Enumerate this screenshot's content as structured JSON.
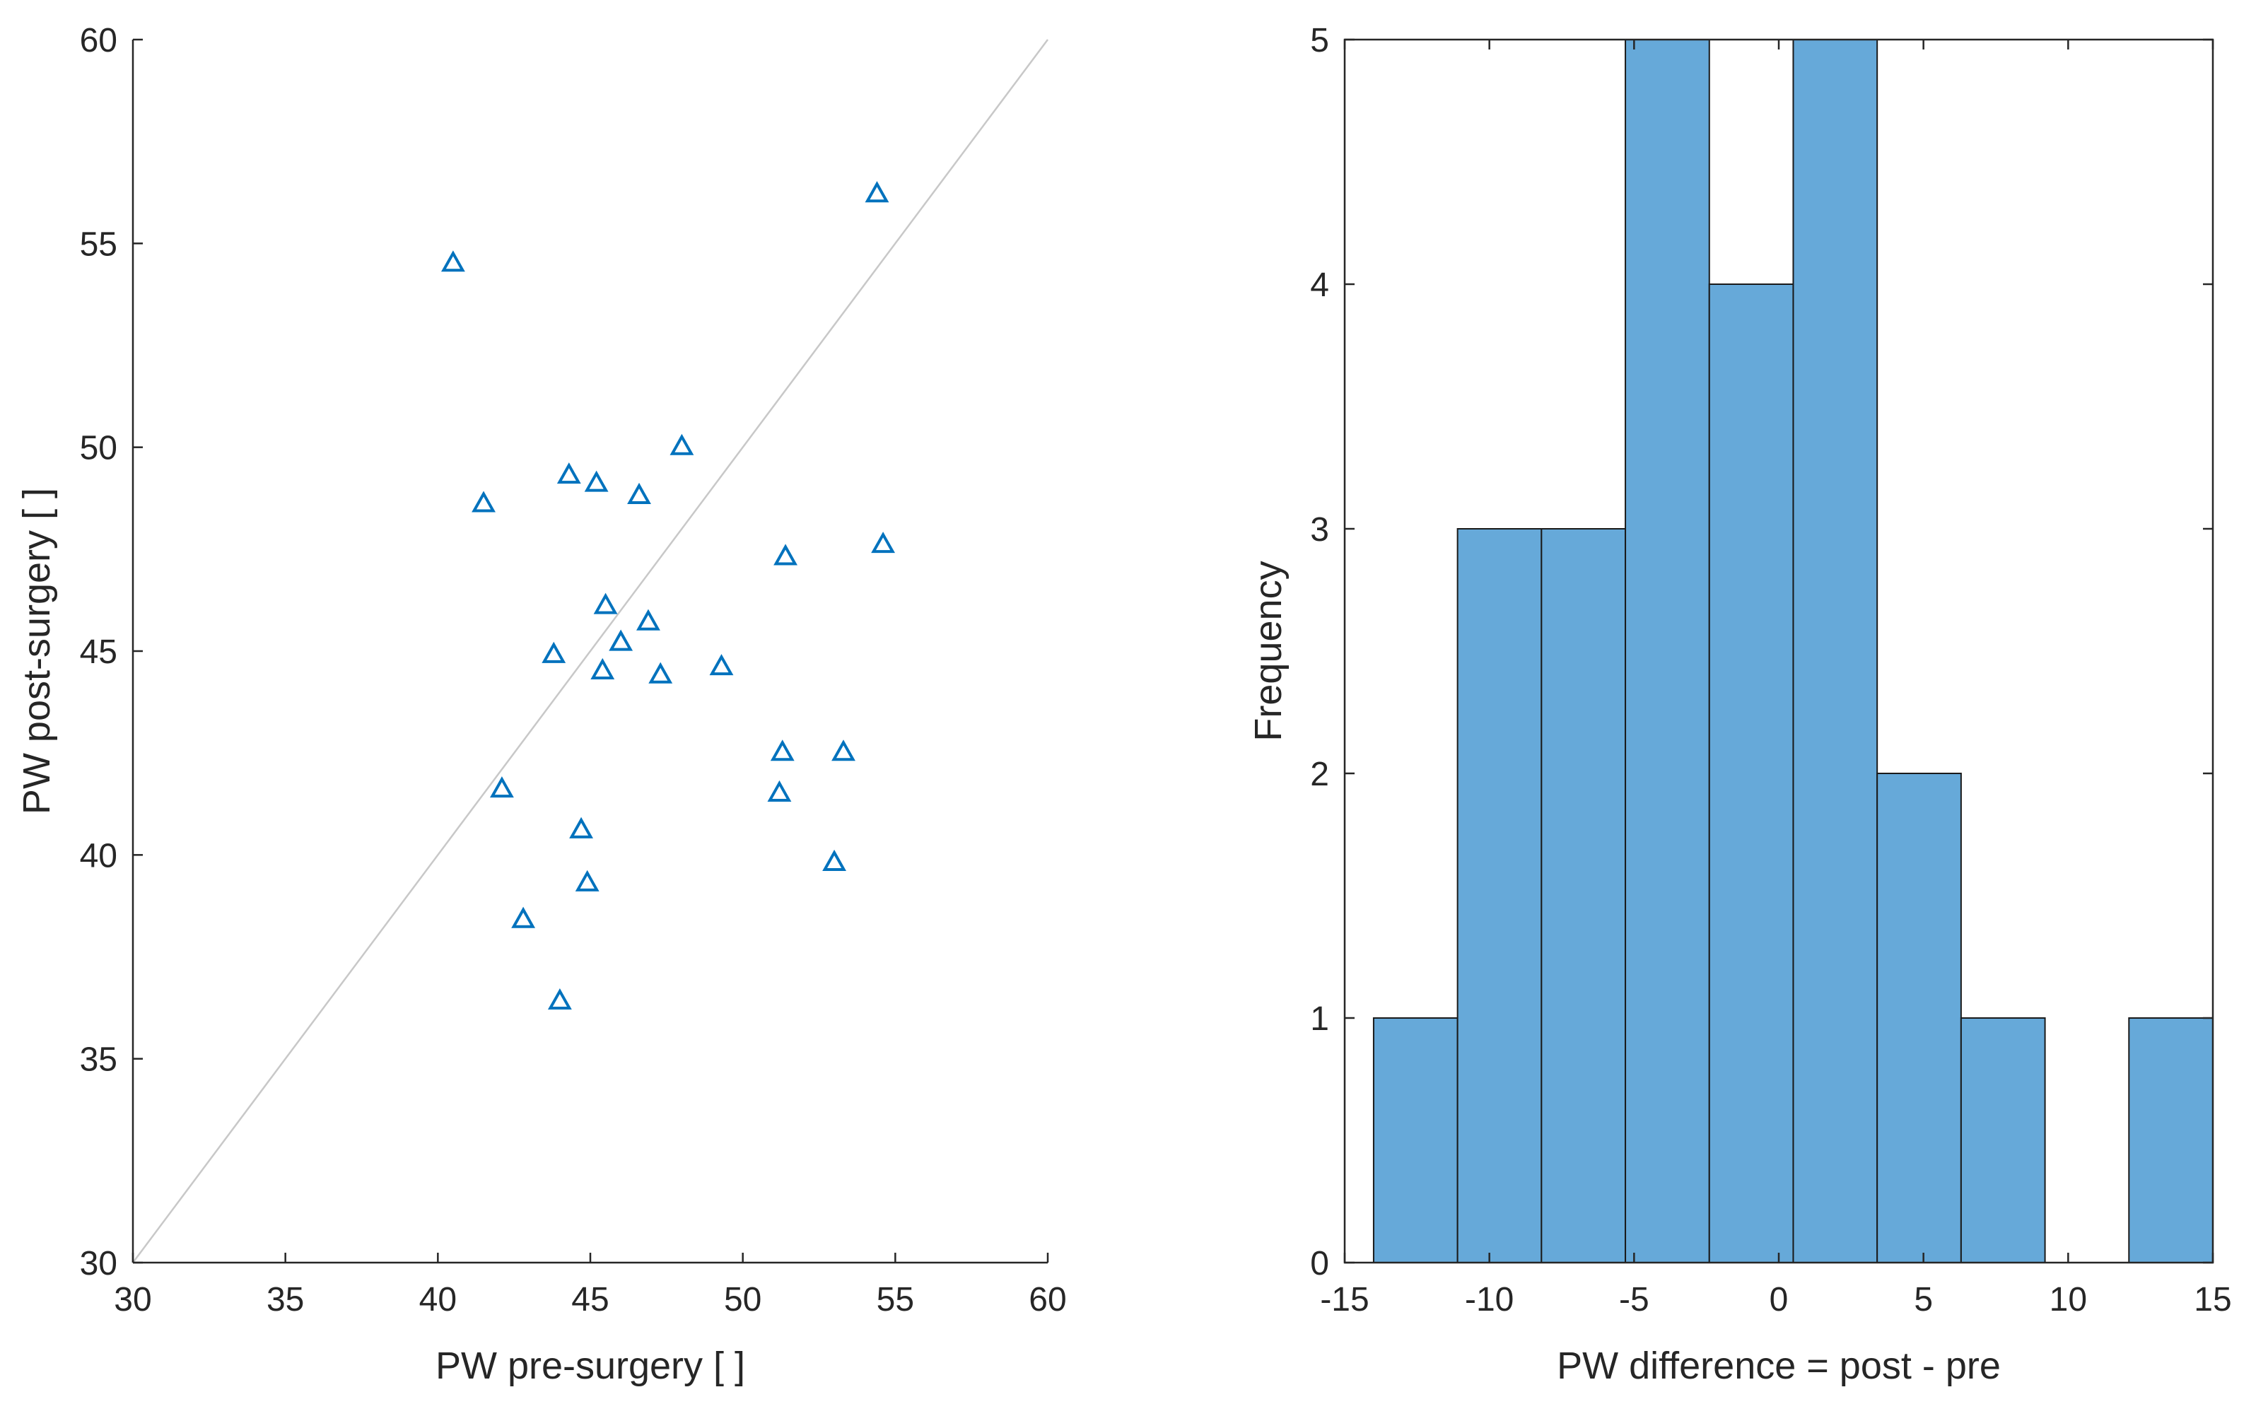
{
  "colors": {
    "marker": "#0072BD",
    "bar_fill": "#66A9D9",
    "bar_edge": "#1a1a1a",
    "identity_line": "#c8c8c8",
    "axis": "#262626"
  },
  "chart_data": [
    {
      "type": "scatter",
      "marker": "triangle-open",
      "title": "",
      "xlabel": "PW pre-surgery [ ]",
      "ylabel": "PW post-surgery [ ]",
      "xlim": [
        30,
        60
      ],
      "ylim": [
        30,
        60
      ],
      "xticks": [
        "30",
        "35",
        "40",
        "45",
        "50",
        "55",
        "60"
      ],
      "yticks": [
        "30",
        "35",
        "40",
        "45",
        "50",
        "55",
        "60"
      ],
      "reference_line": {
        "type": "identity",
        "from": [
          30,
          30
        ],
        "to": [
          60,
          60
        ]
      },
      "grid": false,
      "points": [
        {
          "x": 40.5,
          "y": 54.5
        },
        {
          "x": 41.5,
          "y": 48.6
        },
        {
          "x": 42.1,
          "y": 41.6
        },
        {
          "x": 42.8,
          "y": 38.4
        },
        {
          "x": 43.8,
          "y": 44.9
        },
        {
          "x": 44.0,
          "y": 36.4
        },
        {
          "x": 44.3,
          "y": 49.3
        },
        {
          "x": 44.7,
          "y": 40.6
        },
        {
          "x": 44.9,
          "y": 39.3
        },
        {
          "x": 45.2,
          "y": 49.1
        },
        {
          "x": 45.4,
          "y": 44.5
        },
        {
          "x": 45.5,
          "y": 46.1
        },
        {
          "x": 46.0,
          "y": 45.2
        },
        {
          "x": 46.6,
          "y": 48.8
        },
        {
          "x": 46.9,
          "y": 45.7
        },
        {
          "x": 47.3,
          "y": 44.4
        },
        {
          "x": 48.0,
          "y": 50.0
        },
        {
          "x": 49.3,
          "y": 44.6
        },
        {
          "x": 51.2,
          "y": 41.5
        },
        {
          "x": 51.3,
          "y": 42.5
        },
        {
          "x": 51.4,
          "y": 47.3
        },
        {
          "x": 53.0,
          "y": 39.8
        },
        {
          "x": 53.3,
          "y": 42.5
        },
        {
          "x": 54.4,
          "y": 56.2
        },
        {
          "x": 54.6,
          "y": 47.6
        }
      ]
    },
    {
      "type": "bar",
      "title": "",
      "xlabel": "PW difference = post - pre",
      "ylabel": "Frequency",
      "xlim": [
        -15,
        15
      ],
      "ylim": [
        0,
        5
      ],
      "xticks": [
        "-15",
        "-10",
        "-5",
        "0",
        "5",
        "10",
        "15"
      ],
      "yticks": [
        "0",
        "1",
        "2",
        "3",
        "4",
        "5"
      ],
      "grid": false,
      "bins": [
        {
          "from": -14.0,
          "to": -11.1,
          "count": 1
        },
        {
          "from": -11.1,
          "to": -8.2,
          "count": 3
        },
        {
          "from": -8.2,
          "to": -5.3,
          "count": 3
        },
        {
          "from": -5.3,
          "to": -2.4,
          "count": 5
        },
        {
          "from": -2.4,
          "to": 0.5,
          "count": 4
        },
        {
          "from": 0.5,
          "to": 3.4,
          "count": 5
        },
        {
          "from": 3.4,
          "to": 6.3,
          "count": 2
        },
        {
          "from": 6.3,
          "to": 9.2,
          "count": 1
        },
        {
          "from": 9.2,
          "to": 12.1,
          "count": 0
        },
        {
          "from": 12.1,
          "to": 15.0,
          "count": 1
        }
      ]
    }
  ]
}
